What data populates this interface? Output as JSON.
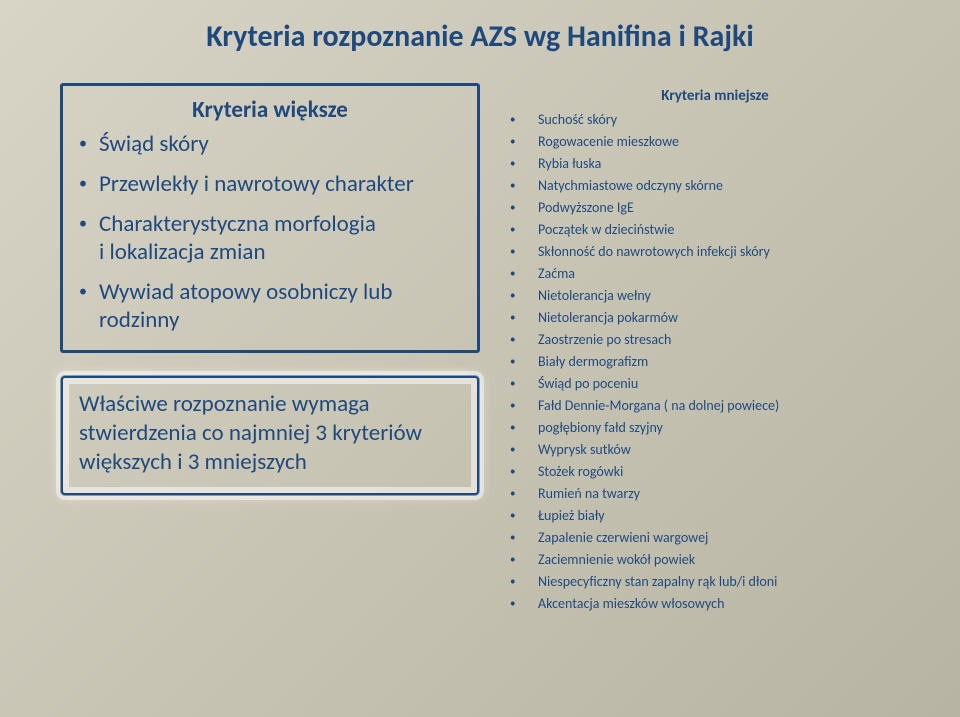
{
  "title": "Kryteria rozpoznanie AZS wg Hanifina i Rajki",
  "major": {
    "heading": "Kryteria większe",
    "items": [
      "Świąd skóry",
      "Przewlekły i nawrotowy charakter",
      "Charakterystyczna morfologia\ni lokalizacja zmian",
      "Wywiad atopowy osobniczy lub rodzinny"
    ]
  },
  "note": "Właściwe rozpoznanie wymaga stwierdzenia co najmniej 3 kryteriów większych i 3 mniejszych",
  "minor": {
    "heading": "Kryteria mniejsze",
    "items": [
      "Suchość skóry",
      "Rogowacenie mieszkowe",
      "Rybia łuska",
      "Natychmiastowe odczyny skórne",
      "Podwyższone IgE",
      "Początek w dzieciństwie",
      "Skłonność do nawrotowych infekcji skóry",
      "Zaćma",
      "Nietolerancja wełny",
      "Nietolerancja pokarmów",
      "Zaostrzenie po stresach",
      "Biały dermografizm",
      "Świąd po poceniu",
      "Fałd Dennie-Morgana ( na dolnej powiece)",
      "pogłębiony fałd szyjny",
      "Wyprysk sutków",
      "Stożek rogówki",
      "Rumień na twarzy",
      "Łupież biały",
      "Zapalenie czerwieni wargowej",
      "Zaciemnienie wokół powiek",
      "Niespecyficzny stan zapalny rąk lub/i dłoni",
      "Akcentacja mieszków włosowych"
    ]
  },
  "colors": {
    "primary": "#1f497d",
    "bg_from": "#d8d4c6",
    "bg_to": "#b8b4a4"
  }
}
